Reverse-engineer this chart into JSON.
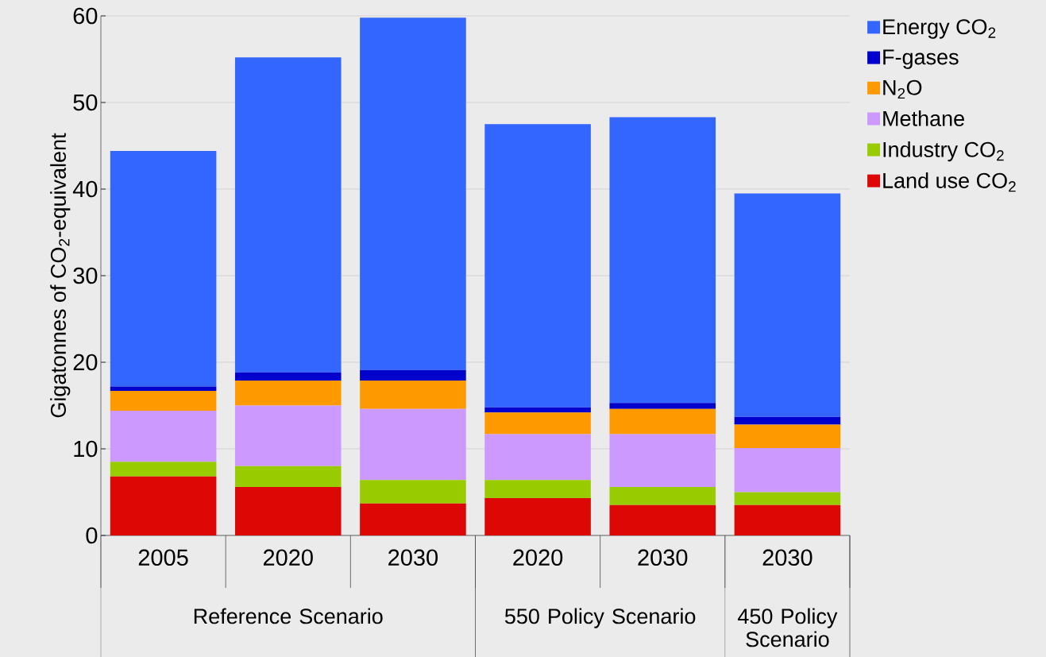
{
  "chart_data": {
    "type": "bar",
    "stacked": true,
    "ylabel": "Gigatonnes of CO$_{2}$-equivalent",
    "categories": [
      "2005",
      "2020",
      "2030",
      "2020",
      "2030",
      "2030"
    ],
    "series": [
      {
        "name": "Land use CO$_{2}$",
        "color": "#dd0806",
        "values": [
          6.8,
          5.6,
          3.7,
          4.3,
          3.5,
          3.5
        ]
      },
      {
        "name": "Industry CO$_{2}$",
        "color": "#99cc00",
        "values": [
          1.7,
          2.4,
          2.7,
          2.1,
          2.1,
          1.5
        ]
      },
      {
        "name": "Methane",
        "color": "#cc99ff",
        "values": [
          5.9,
          7.0,
          8.2,
          5.3,
          6.1,
          5.1
        ]
      },
      {
        "name": "N$_{2}$O",
        "color": "#ff9900",
        "values": [
          2.3,
          2.9,
          3.3,
          2.5,
          2.9,
          2.7
        ]
      },
      {
        "name": "F-gases",
        "color": "#0000cc",
        "values": [
          0.5,
          0.9,
          1.2,
          0.6,
          0.7,
          0.9
        ]
      },
      {
        "name": "Energy CO$_{2}$",
        "color": "#3366ff",
        "values": [
          27.2,
          36.4,
          40.7,
          32.7,
          33.0,
          25.8
        ]
      }
    ],
    "ylim": [
      0,
      60
    ],
    "yticks": [
      0,
      10,
      20,
      30,
      40,
      50,
      60
    ],
    "grid": "y",
    "legend": "top right",
    "annotations": [
      "Reference Scenario",
      "550 Policy Scenario",
      "450 Policy Scenario"
    ]
  }
}
